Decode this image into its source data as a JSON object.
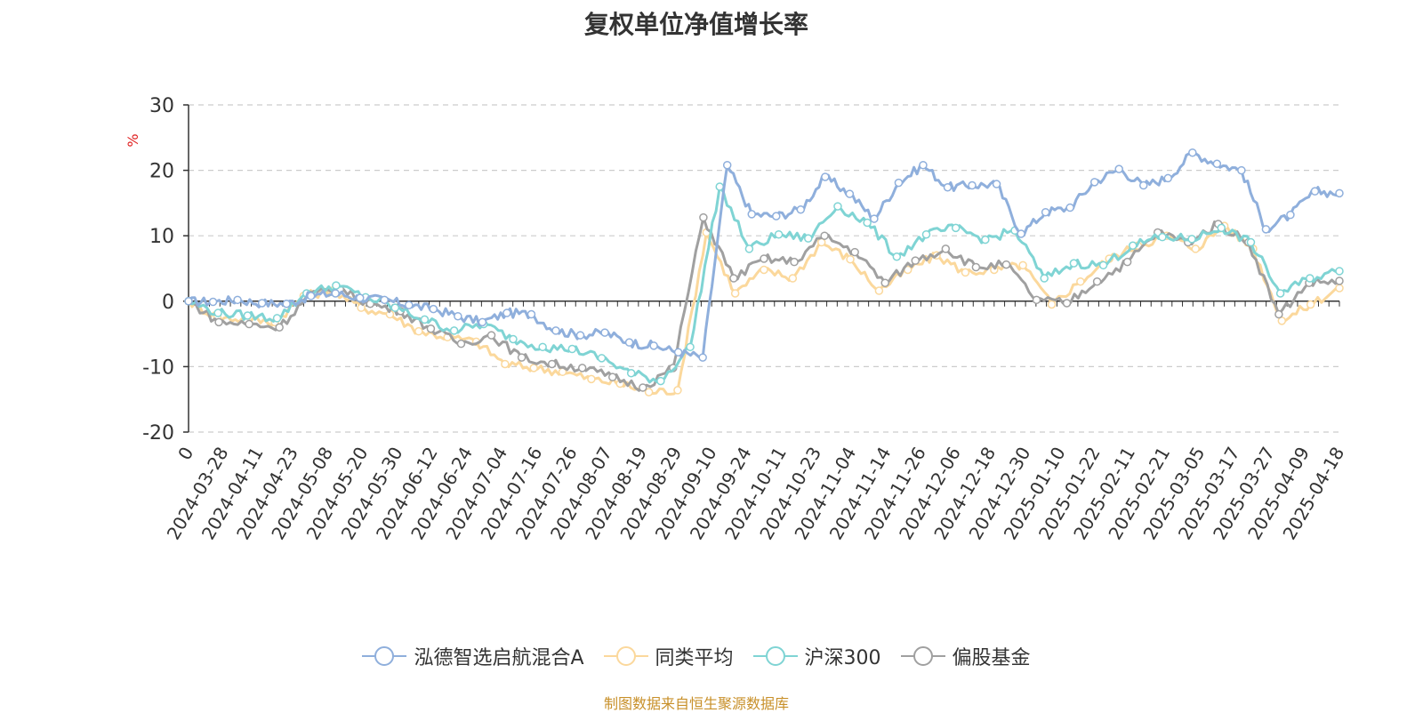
{
  "title": "复权单位净值增长率",
  "source_note": "制图数据来自恒生聚源数据库",
  "chart_data": {
    "type": "line",
    "title": "复权单位净值增长率",
    "ylabel": "%",
    "ylim": [
      -20,
      30
    ],
    "yticks": [
      -20,
      -10,
      0,
      10,
      20,
      30
    ],
    "grid": true,
    "legend_position": "bottom",
    "xtick_labels": [
      "0",
      "2024-03-28",
      "2024-04-11",
      "2024-04-23",
      "2024-05-08",
      "2024-05-20",
      "2024-05-30",
      "2024-06-12",
      "2024-06-24",
      "2024-07-04",
      "2024-07-16",
      "2024-07-26",
      "2024-08-07",
      "2024-08-19",
      "2024-08-29",
      "2024-09-10",
      "2024-09-24",
      "2024-10-11",
      "2024-10-23",
      "2024-11-04",
      "2024-11-14",
      "2024-11-26",
      "2024-12-06",
      "2024-12-18",
      "2024-12-30",
      "2025-01-10",
      "2025-01-22",
      "2025-02-11",
      "2025-02-21",
      "2025-03-05",
      "2025-03-17",
      "2025-03-27",
      "2025-04-09",
      "2025-04-18"
    ],
    "series": [
      {
        "name": "泓德智选启航混合A",
        "color": "#8fafdc",
        "values": [
          0,
          -0.1,
          0.2,
          -0.3,
          -0.4,
          0.8,
          1.2,
          0.5,
          0.2,
          -0.6,
          -1.2,
          -2.3,
          -3.2,
          -1.8,
          -2.0,
          -4.5,
          -5.2,
          -4.8,
          -6.3,
          -6.8,
          -7.8,
          -8.6,
          20.8,
          13.3,
          13.0,
          14.0,
          19.0,
          16.4,
          12.6,
          18.1,
          20.8,
          17.4,
          17.7,
          17.9,
          10.3,
          13.6,
          14.3,
          18.2,
          20.2,
          17.7,
          18.8,
          22.7,
          21.0,
          20.0,
          11.0,
          13.2,
          16.8,
          16.5
        ]
      },
      {
        "name": "同类平均",
        "color": "#fbd89c",
        "values": [
          0,
          -2.5,
          -2.8,
          -3.2,
          0.8,
          1.6,
          -1.0,
          -2.0,
          -4.6,
          -5.5,
          -6.2,
          -9.6,
          -10.2,
          -10.8,
          -11.9,
          -12.6,
          -13.9,
          -13.6,
          10.5,
          1.2,
          4.8,
          3.5,
          9.0,
          6.4,
          1.6,
          4.8,
          7.0,
          4.4,
          4.8,
          5.5,
          -0.5,
          3.0,
          6.5,
          8.5,
          10.0,
          8.0,
          11.5,
          8.0,
          -3.0,
          -0.5,
          2.0
        ]
      },
      {
        "name": "沪深300",
        "color": "#7fd4d4",
        "values": [
          0,
          -1.8,
          -2.2,
          -2.6,
          1.2,
          2.4,
          0.6,
          -1.0,
          -2.8,
          -4.5,
          -3.5,
          -5.8,
          -7.0,
          -7.3,
          -8.7,
          -11.0,
          -12.2,
          -7.0,
          17.5,
          8.0,
          10.2,
          9.6,
          14.5,
          12.0,
          6.8,
          10.2,
          11.2,
          9.4,
          10.8,
          3.5,
          5.8,
          5.5,
          8.5,
          9.8,
          9.5,
          11.2,
          9.0,
          1.2,
          3.5,
          4.6
        ]
      },
      {
        "name": "偏股基金",
        "color": "#a0a0a0",
        "values": [
          0,
          -3.2,
          -3.5,
          -4.0,
          1.0,
          1.8,
          -0.4,
          -1.5,
          -4.2,
          -6.5,
          -5.2,
          -8.6,
          -9.6,
          -10.2,
          -11.6,
          -13.2,
          -10.2,
          12.8,
          3.5,
          6.5,
          6.0,
          10.0,
          7.5,
          2.8,
          6.2,
          8.0,
          5.2,
          5.6,
          0.2,
          -0.3,
          3.0,
          6.0,
          10.5,
          9.0,
          11.8,
          9.0,
          -2.0,
          2.8,
          3.1
        ]
      }
    ]
  },
  "legend": {
    "items": [
      {
        "label": "泓德智选启航混合A",
        "color": "#8fafdc"
      },
      {
        "label": "同类平均",
        "color": "#fbd89c"
      },
      {
        "label": "沪深300",
        "color": "#7fd4d4"
      },
      {
        "label": "偏股基金",
        "color": "#a0a0a0"
      }
    ]
  }
}
